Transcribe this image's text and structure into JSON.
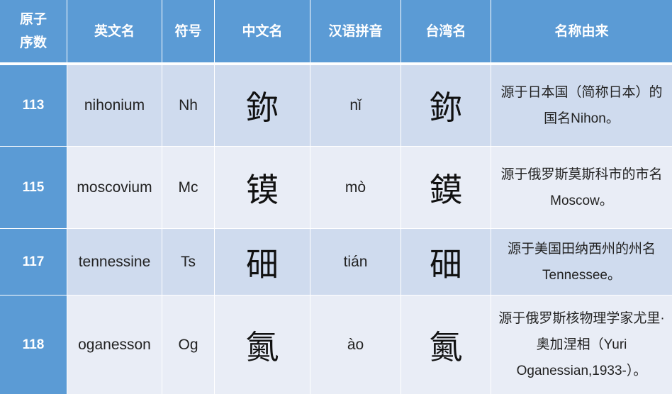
{
  "header": [
    "原子序数",
    "英文名",
    "符号",
    "中文名",
    "汉语拼音",
    "台湾名",
    "名称由来"
  ],
  "header_first_lines": [
    "原子",
    "序数"
  ],
  "rows": [
    {
      "number": "113",
      "english": "nihonium",
      "symbol": "Nh",
      "chinese": "鉨",
      "pinyin": "nǐ",
      "taiwan": "鉨",
      "origin": [
        "源于日本国（简称日本）的",
        "国名Nihon。"
      ]
    },
    {
      "number": "115",
      "english": "moscovium",
      "symbol": "Mc",
      "chinese": "镆",
      "pinyin": "mò",
      "taiwan": "鏌",
      "origin": [
        "源于俄罗斯莫斯科市的市名",
        "Moscow。"
      ]
    },
    {
      "number": "117",
      "english": "tennessine",
      "symbol": "Ts",
      "chinese": "鿬",
      "pinyin": "tián",
      "taiwan": "鿬",
      "origin": [
        "源于美国田纳西州的州名",
        "Tennessee。"
      ]
    },
    {
      "number": "118",
      "english": "oganesson",
      "symbol": "Og",
      "chinese": "鿫",
      "pinyin": "ào",
      "taiwan": "鿫",
      "origin": [
        "源于俄罗斯核物理学家尤里·",
        "奥加涅相（Yuri",
        "Oganessian,1933-）。"
      ]
    }
  ],
  "colors": {
    "header": "#5b9bd5",
    "row_odd": "#cfdbee",
    "row_even": "#e9edf6"
  }
}
